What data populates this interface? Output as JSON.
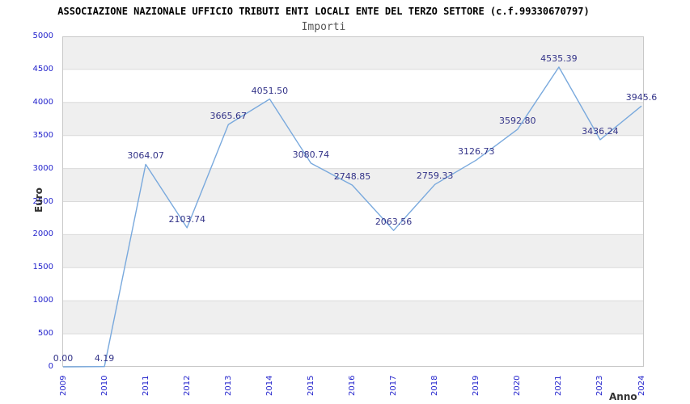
{
  "header": {
    "title": "ASSOCIAZIONE NAZIONALE UFFICIO TRIBUTI ENTI LOCALI ENTE DEL TERZO SETTORE (c.f.99330670797)",
    "subtitle": "Importi"
  },
  "axes": {
    "y_label": "Euro",
    "x_label": "Anno"
  },
  "chart_data": {
    "type": "line",
    "title": "Importi",
    "categories": [
      "2009",
      "2010",
      "2011",
      "2012",
      "2013",
      "2014",
      "2015",
      "2016",
      "2017",
      "2018",
      "2019",
      "2020",
      "2021",
      "2023",
      "2024"
    ],
    "values": [
      0,
      4.19,
      3064.07,
      2103.74,
      3665.67,
      4051.5,
      3080.74,
      2748.85,
      2063.56,
      2759.33,
      3126.73,
      3592.8,
      4535.39,
      3436.24,
      3945.6
    ],
    "point_labels": [
      "0.00",
      "4.19",
      "3064.07",
      "2103.74",
      "3665.67",
      "4051.50",
      "3080.74",
      "2748.85",
      "2063.56",
      "2759.33",
      "3126.73",
      "3592.80",
      "4535.39",
      "3436.24",
      "3945.6"
    ],
    "xlabel": "Anno",
    "ylabel": "Euro",
    "ylim": [
      0,
      5000
    ],
    "yticks": [
      0,
      500,
      1000,
      1500,
      2000,
      2500,
      3000,
      3500,
      4000,
      4500,
      5000
    ],
    "grid": "horizontal-bands",
    "legend_position": "none",
    "colors": {
      "line": "#79a9dd",
      "point_label": "#333388",
      "tick_label": "#2323cc",
      "band": "#efefef",
      "gridline": "#dadada",
      "border": "#c8c8c8",
      "axis_title": "#333333",
      "title": "#000000",
      "subtitle": "#555555",
      "background": "#ffffff"
    }
  }
}
